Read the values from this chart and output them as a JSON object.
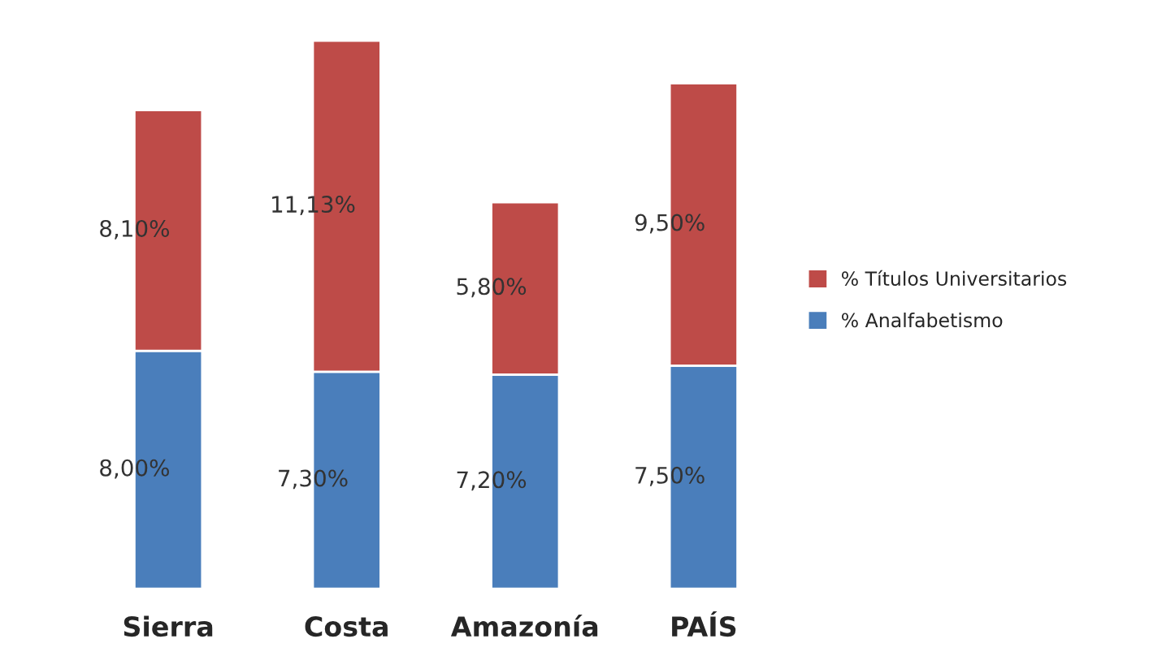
{
  "chart_data": {
    "type": "bar",
    "stacked": true,
    "categories": [
      "Sierra",
      "Costa",
      "Amazonía",
      "PAÍS"
    ],
    "series": [
      {
        "name": "% Analfabetismo",
        "color": "#4a7ebb",
        "values": [
          8.0,
          7.3,
          7.2,
          7.5
        ],
        "value_labels": [
          "8,00%",
          "7,30%",
          "7,20%",
          "7,50%"
        ]
      },
      {
        "name": "% Títulos Universitarios",
        "color": "#be4b48",
        "values": [
          8.1,
          11.13,
          5.8,
          9.5
        ],
        "value_labels": [
          "8,10%",
          "11,13%",
          "5,80%",
          "9,50%"
        ]
      }
    ],
    "legend": "right",
    "grid": false,
    "tick_labels": "x"
  }
}
